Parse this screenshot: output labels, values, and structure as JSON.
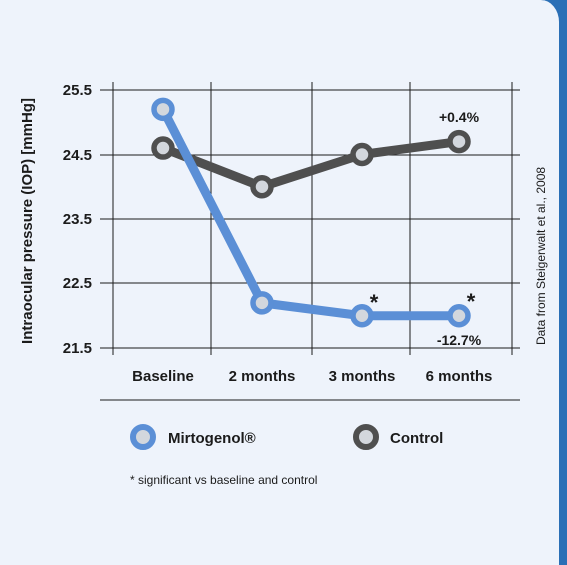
{
  "chart_data": {
    "type": "line",
    "categories": [
      "Baseline",
      "2 months",
      "3 months",
      "6 months"
    ],
    "ylabel": "Intraocular pressure (IOP) [mmHg]",
    "yticks": [
      "25.5",
      "24.5",
      "23.5",
      "22.5",
      "21.5"
    ],
    "ylim": [
      21.5,
      25.5
    ],
    "grid": true,
    "legend_position": "bottom",
    "series": [
      {
        "name": "Mirtogenol®",
        "color": "#5b8fd6",
        "values": [
          25.2,
          22.2,
          22.0,
          22.0
        ]
      },
      {
        "name": "Control",
        "color": "#4f4f4f",
        "values": [
          24.6,
          24.0,
          24.5,
          24.7
        ]
      }
    ],
    "annotations": {
      "control_change": "+0.4%",
      "mirtogenol_change": "-12.7%",
      "significance_marker": "*"
    },
    "footnote": "* significant vs baseline and control",
    "source": "Data from Steigerwalt et al., 2008"
  }
}
